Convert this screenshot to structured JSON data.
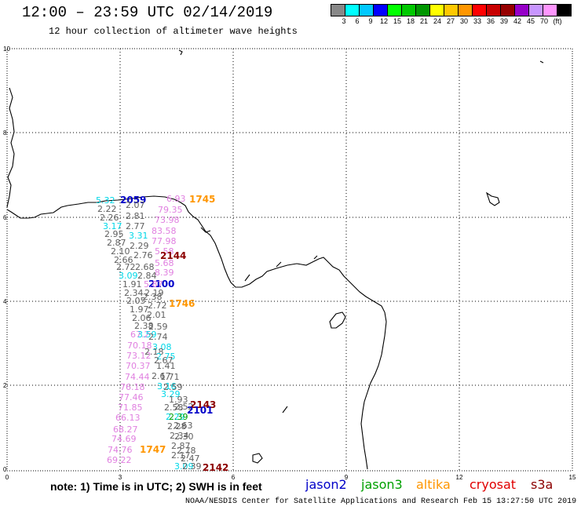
{
  "header": {
    "title": "12:00 – 23:59 UTC 02/14/2019",
    "subtitle": "12 hour collection of altimeter wave heights"
  },
  "colorbar": {
    "colors": [
      "#888888",
      "#00ffff",
      "#00c8ff",
      "#0000ff",
      "#00ff00",
      "#00c800",
      "#009600",
      "#ffff00",
      "#ffc800",
      "#ff9600",
      "#ff0000",
      "#c80000",
      "#960000",
      "#9600c8",
      "#c896ff",
      "#ff96ff",
      "#000000"
    ],
    "labels": [
      "3",
      "6",
      "9",
      "12",
      "15",
      "18",
      "21",
      "24",
      "27",
      "30",
      "33",
      "36",
      "39",
      "42",
      "45",
      "70",
      "(ft)"
    ]
  },
  "axes": {
    "x_ticks": [
      "0",
      "3",
      "6",
      "9",
      "12",
      "15"
    ],
    "y_ticks": [
      "0",
      "2",
      "4",
      "6",
      "8",
      "10"
    ]
  },
  "wave_labels": [
    {
      "t": "5.32",
      "c": "#00d8e8"
    },
    {
      "t": "2059",
      "c": "#0000c8",
      "b": true
    },
    {
      "t": "6.93",
      "c": "#e080e0"
    },
    {
      "t": "1745",
      "c": "#ff9600",
      "b": true
    },
    {
      "t": "2.22",
      "c": "#606060"
    },
    {
      "t": "2.07",
      "c": "#606060"
    },
    {
      "t": "79.35",
      "c": "#e080e0"
    },
    {
      "t": "2.26",
      "c": "#606060"
    },
    {
      "t": "2.81",
      "c": "#606060"
    },
    {
      "t": "73.98",
      "c": "#e080e0"
    },
    {
      "t": "3.17",
      "c": "#00d8e8"
    },
    {
      "t": "2.77",
      "c": "#606060"
    },
    {
      "t": "83.58",
      "c": "#e080e0"
    },
    {
      "t": "2.95",
      "c": "#606060"
    },
    {
      "t": "3.31",
      "c": "#00d8e8"
    },
    {
      "t": "77.98",
      "c": "#e080e0"
    },
    {
      "t": "2.87",
      "c": "#606060"
    },
    {
      "t": "2.29",
      "c": "#606060"
    },
    {
      "t": "5.58",
      "c": "#e080e0"
    },
    {
      "t": "2.10",
      "c": "#606060"
    },
    {
      "t": "2.76",
      "c": "#606060"
    },
    {
      "t": "2144",
      "c": "#8c0000",
      "b": true
    },
    {
      "t": "2.66",
      "c": "#606060"
    },
    {
      "t": "5.68",
      "c": "#e080e0"
    },
    {
      "t": "2.72",
      "c": "#606060"
    },
    {
      "t": "2.68",
      "c": "#606060"
    },
    {
      "t": "8.39",
      "c": "#e080e0"
    },
    {
      "t": "3.09",
      "c": "#00d8e8"
    },
    {
      "t": "2.84",
      "c": "#606060"
    },
    {
      "t": "2100",
      "c": "#0000c8",
      "b": true
    },
    {
      "t": "1.91",
      "c": "#606060"
    },
    {
      "t": "5.87",
      "c": "#e080e0"
    },
    {
      "t": "2.34",
      "c": "#606060"
    },
    {
      "t": "2.19",
      "c": "#606060"
    },
    {
      "t": "2.05",
      "c": "#606060"
    },
    {
      "t": "2.38",
      "c": "#606060"
    },
    {
      "t": "1746",
      "c": "#ff9600",
      "b": true
    },
    {
      "t": "1.97",
      "c": "#606060"
    },
    {
      "t": "2.72",
      "c": "#606060"
    },
    {
      "t": "2.06",
      "c": "#606060"
    },
    {
      "t": "2.01",
      "c": "#606060"
    },
    {
      "t": "2.38",
      "c": "#606060"
    },
    {
      "t": "2.59",
      "c": "#606060"
    },
    {
      "t": "67.2",
      "c": "#e080e0"
    },
    {
      "t": "3.59",
      "c": "#00d8e8"
    },
    {
      "t": "2.74",
      "c": "#606060"
    },
    {
      "t": "70.18",
      "c": "#e080e0"
    },
    {
      "t": "3.08",
      "c": "#00d8e8"
    },
    {
      "t": "73.12",
      "c": "#e080e0"
    },
    {
      "t": "2.18",
      "c": "#606060"
    },
    {
      "t": "2.75",
      "c": "#00d8e8"
    },
    {
      "t": "2.67",
      "c": "#606060"
    },
    {
      "t": "70.37",
      "c": "#e080e0"
    },
    {
      "t": "1.41",
      "c": "#606060"
    },
    {
      "t": "74.44",
      "c": "#e080e0"
    },
    {
      "t": "2.67",
      "c": "#606060"
    },
    {
      "t": "1.71",
      "c": "#606060"
    },
    {
      "t": "76.18",
      "c": "#e080e0"
    },
    {
      "t": "3.16",
      "c": "#00d8e8"
    },
    {
      "t": "2.59",
      "c": "#606060"
    },
    {
      "t": "77.46",
      "c": "#e080e0"
    },
    {
      "t": "3.29",
      "c": "#00d8e8"
    },
    {
      "t": "1.93",
      "c": "#606060"
    },
    {
      "t": "71.85",
      "c": "#e080e0"
    },
    {
      "t": "2.58",
      "c": "#606060"
    },
    {
      "t": "2.52",
      "c": "#606060"
    },
    {
      "t": "2143",
      "c": "#8c0000",
      "b": true
    },
    {
      "t": "2101",
      "c": "#0000c8",
      "b": true
    },
    {
      "t": "66.13",
      "c": "#e080e0"
    },
    {
      "t": "2.29",
      "c": "#00d8e8"
    },
    {
      "t": "2.39",
      "c": "#00a000"
    },
    {
      "t": "68.27",
      "c": "#e080e0"
    },
    {
      "t": "2.28",
      "c": "#606060"
    },
    {
      "t": "2.63",
      "c": "#606060"
    },
    {
      "t": "74.69",
      "c": "#e080e0"
    },
    {
      "t": "2.34",
      "c": "#606060"
    },
    {
      "t": "2.30",
      "c": "#606060"
    },
    {
      "t": "74.76",
      "c": "#e080e0"
    },
    {
      "t": "1747",
      "c": "#ff9600",
      "b": true
    },
    {
      "t": "2.87",
      "c": "#606060"
    },
    {
      "t": "2.78",
      "c": "#606060"
    },
    {
      "t": "69.22",
      "c": "#e080e0"
    },
    {
      "t": "2.17",
      "c": "#606060"
    },
    {
      "t": "2.47",
      "c": "#606060"
    },
    {
      "t": "3.09",
      "c": "#00d8e8"
    },
    {
      "t": "2.39",
      "c": "#606060"
    },
    {
      "t": "2142",
      "c": "#8c0000",
      "b": true
    }
  ],
  "footer": {
    "note": "note: 1) Time is in UTC; 2) SWH is in feet",
    "legend": [
      {
        "label": "jason2",
        "color": "#0000c8"
      },
      {
        "label": "jason3",
        "color": "#00a000"
      },
      {
        "label": "altika",
        "color": "#ff9600"
      },
      {
        "label": "cryosat",
        "color": "#e00000"
      },
      {
        "label": "s3a",
        "color": "#8c0000"
      }
    ],
    "credit": "NOAA/NESDIS Center for Satellite Applications and Research    Feb 15 13:27:50 UTC 2019"
  }
}
